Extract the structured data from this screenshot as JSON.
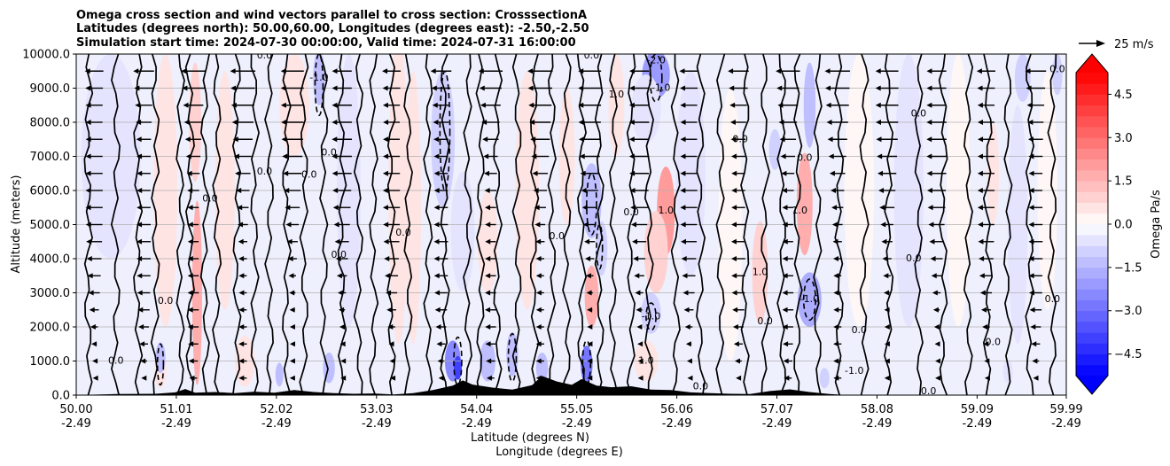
{
  "chart_data": {
    "type": "contour",
    "title_lines": [
      "Omega cross section and wind vectors parallel to cross section: CrosssectionA",
      "Latitudes (degrees north): 50.00,60.00, Longitudes (degrees east): -2.50,-2.50",
      "Simulation start time: 2024-07-30 00:00:00, Valid time: 2024-07-31 16:00:00"
    ],
    "xlabel_lines": [
      "Latitude (degrees N)",
      "Longitude (degrees E)"
    ],
    "ylabel": "Altitude (meters)",
    "xlim": [
      50.0,
      59.99
    ],
    "ylim": [
      0,
      10000
    ],
    "x_ticks": [
      {
        "value": 50.0,
        "lat": "50.00",
        "lon": "-2.49"
      },
      {
        "value": 51.01,
        "lat": "51.01",
        "lon": "-2.49"
      },
      {
        "value": 52.02,
        "lat": "52.02",
        "lon": "-2.49"
      },
      {
        "value": 53.03,
        "lat": "53.03",
        "lon": "-2.49"
      },
      {
        "value": 54.04,
        "lat": "54.04",
        "lon": "-2.49"
      },
      {
        "value": 55.05,
        "lat": "55.05",
        "lon": "-2.49"
      },
      {
        "value": 56.06,
        "lat": "56.06",
        "lon": "-2.49"
      },
      {
        "value": 57.07,
        "lat": "57.07",
        "lon": "-2.49"
      },
      {
        "value": 58.08,
        "lat": "58.08",
        "lon": "-2.49"
      },
      {
        "value": 59.09,
        "lat": "59.09",
        "lon": "-2.49"
      },
      {
        "value": 59.99,
        "lat": "59.99",
        "lon": "-2.49"
      }
    ],
    "y_ticks": [
      0,
      1000,
      2000,
      3000,
      4000,
      5000,
      6000,
      7000,
      8000,
      9000,
      10000
    ],
    "y_tick_labels": [
      "0.0",
      "1000.0",
      "2000.0",
      "3000.0",
      "4000.0",
      "5000.0",
      "6000.0",
      "7000.0",
      "8000.0",
      "9000.0",
      "10000.0"
    ],
    "grid": "horizontal",
    "colorbar": {
      "label": "Omega Pa/s",
      "range": [
        -5.25,
        5.25
      ],
      "step": 0.375,
      "extend": "both",
      "ticks": [
        -4.5,
        -3.0,
        -1.5,
        0.0,
        1.5,
        3.0,
        4.5
      ],
      "tick_labels": [
        "−4.5",
        "−3.0",
        "−1.5",
        "0.0",
        "1.5",
        "3.0",
        "4.5"
      ],
      "cmap": "bwr"
    },
    "wind_key": {
      "label": "25 m/s",
      "speed": 25
    },
    "contour_label_values": [
      "0.0",
      "1.0",
      "-1.0",
      "-2.0"
    ],
    "contour_labels": [
      {
        "text": "0.0",
        "x": 51.9,
        "y": 9950
      },
      {
        "text": "0.0",
        "x": 55.2,
        "y": 9950
      },
      {
        "text": "0.0",
        "x": 53.3,
        "y": 4750
      },
      {
        "text": "0.0",
        "x": 57.9,
        "y": 1900
      },
      {
        "text": "0.0",
        "x": 59.25,
        "y": 1550
      },
      {
        "text": "0.0",
        "x": 56.95,
        "y": 2150
      },
      {
        "text": "0.0",
        "x": 50.9,
        "y": 2750
      },
      {
        "text": "0.0",
        "x": 51.9,
        "y": 6550
      },
      {
        "text": "0.0",
        "x": 51.35,
        "y": 5750
      },
      {
        "text": "0.0",
        "x": 52.35,
        "y": 6450
      },
      {
        "text": "0.0",
        "x": 52.55,
        "y": 7100
      },
      {
        "text": "0.0",
        "x": 54.85,
        "y": 4650
      },
      {
        "text": "0.0",
        "x": 55.6,
        "y": 5350
      },
      {
        "text": "0.0",
        "x": 56.7,
        "y": 7500
      },
      {
        "text": "0.0",
        "x": 57.35,
        "y": 6950
      },
      {
        "text": "0.0",
        "x": 58.45,
        "y": 4000
      },
      {
        "text": "0.0",
        "x": 58.5,
        "y": 8250
      },
      {
        "text": "0.0",
        "x": 59.85,
        "y": 2800
      },
      {
        "text": "0.0",
        "x": 59.9,
        "y": 9550
      },
      {
        "text": "0.0",
        "x": 50.4,
        "y": 1000
      },
      {
        "text": "0.0",
        "x": 52.65,
        "y": 4100
      },
      {
        "text": "0.0",
        "x": 56.3,
        "y": 250
      },
      {
        "text": "0.0",
        "x": 58.6,
        "y": 100
      },
      {
        "text": "1.0",
        "x": 55.95,
        "y": 5400
      },
      {
        "text": "1.0",
        "x": 57.3,
        "y": 5400
      },
      {
        "text": "1.0",
        "x": 56.9,
        "y": 3600
      },
      {
        "text": "1.0",
        "x": 55.75,
        "y": 1000
      },
      {
        "text": "1.0",
        "x": 55.45,
        "y": 8800
      },
      {
        "text": "-1.0",
        "x": 52.45,
        "y": 9300
      },
      {
        "text": "-1.0",
        "x": 55.9,
        "y": 9000
      },
      {
        "text": "-1.0",
        "x": 57.4,
        "y": 2800
      },
      {
        "text": "-1.0",
        "x": 55.8,
        "y": 2300
      },
      {
        "text": "-1.0",
        "x": 57.85,
        "y": 700
      },
      {
        "text": "-2.0",
        "x": 55.85,
        "y": 9800
      }
    ],
    "cells": [
      {
        "x": 51.22,
        "y": 3000,
        "v": 1.8,
        "w": 0.05,
        "h": 5400
      },
      {
        "x": 51.2,
        "y": 8000,
        "v": 0.8,
        "w": 0.06,
        "h": 3500
      },
      {
        "x": 51.5,
        "y": 6000,
        "v": 0.6,
        "w": 0.1,
        "h": 7000
      },
      {
        "x": 50.9,
        "y": 6000,
        "v": 0.4,
        "w": 0.12,
        "h": 8000
      },
      {
        "x": 50.35,
        "y": 7000,
        "v": -0.4,
        "w": 0.3,
        "h": 6000
      },
      {
        "x": 50.85,
        "y": 800,
        "v": 0.7,
        "w": 0.06,
        "h": 1200
      },
      {
        "x": 50.85,
        "y": 1100,
        "v": -1.4,
        "w": 0.05,
        "h": 900
      },
      {
        "x": 51.7,
        "y": 1000,
        "v": 0.6,
        "w": 0.1,
        "h": 1500
      },
      {
        "x": 52.2,
        "y": 8500,
        "v": 0.4,
        "w": 0.15,
        "h": 3000
      },
      {
        "x": 52.45,
        "y": 9300,
        "v": -1.3,
        "w": 0.06,
        "h": 1600
      },
      {
        "x": 52.05,
        "y": 600,
        "v": -1.5,
        "w": 0.04,
        "h": 700
      },
      {
        "x": 52.55,
        "y": 800,
        "v": -1.2,
        "w": 0.06,
        "h": 900
      },
      {
        "x": 52.75,
        "y": 6000,
        "v": -0.4,
        "w": 0.12,
        "h": 8000
      },
      {
        "x": 53.25,
        "y": 6000,
        "v": 0.6,
        "w": 0.1,
        "h": 9000
      },
      {
        "x": 53.4,
        "y": 5500,
        "v": 0.45,
        "w": 0.08,
        "h": 8000
      },
      {
        "x": 53.7,
        "y": 7500,
        "v": -1.0,
        "w": 0.12,
        "h": 4000
      },
      {
        "x": 53.9,
        "y": 4800,
        "v": -0.5,
        "w": 0.12,
        "h": 3500
      },
      {
        "x": 54.15,
        "y": 4500,
        "v": 0.7,
        "w": 0.1,
        "h": 3000
      },
      {
        "x": 53.8,
        "y": 1000,
        "v": -2.4,
        "w": 0.08,
        "h": 1200
      },
      {
        "x": 53.85,
        "y": 800,
        "v": -4.0,
        "w": 0.04,
        "h": 700
      },
      {
        "x": 54.15,
        "y": 1000,
        "v": -1.4,
        "w": 0.08,
        "h": 1200
      },
      {
        "x": 54.55,
        "y": 6000,
        "v": 0.4,
        "w": 0.12,
        "h": 7000
      },
      {
        "x": 54.4,
        "y": 1200,
        "v": -1.2,
        "w": 0.06,
        "h": 1300
      },
      {
        "x": 54.7,
        "y": 800,
        "v": -1.3,
        "w": 0.06,
        "h": 900
      },
      {
        "x": 55.2,
        "y": 5700,
        "v": -1.4,
        "w": 0.1,
        "h": 2200
      },
      {
        "x": 55.3,
        "y": 4300,
        "v": -1.1,
        "w": 0.06,
        "h": 1600
      },
      {
        "x": 55.2,
        "y": 2900,
        "v": 1.8,
        "w": 0.07,
        "h": 1800
      },
      {
        "x": 55.15,
        "y": 900,
        "v": -2.8,
        "w": 0.06,
        "h": 1100
      },
      {
        "x": 54.95,
        "y": 7000,
        "v": 0.5,
        "w": 0.08,
        "h": 4000
      },
      {
        "x": 55.45,
        "y": 8500,
        "v": 0.6,
        "w": 0.08,
        "h": 3000
      },
      {
        "x": 55.85,
        "y": 9400,
        "v": -1.9,
        "w": 0.14,
        "h": 1400
      },
      {
        "x": 55.75,
        "y": 8400,
        "v": -0.5,
        "w": 0.15,
        "h": 2000
      },
      {
        "x": 55.95,
        "y": 5400,
        "v": 2.0,
        "w": 0.09,
        "h": 2600
      },
      {
        "x": 55.85,
        "y": 4200,
        "v": 1.0,
        "w": 0.12,
        "h": 2400
      },
      {
        "x": 55.8,
        "y": 2400,
        "v": -0.9,
        "w": 0.1,
        "h": 1200
      },
      {
        "x": 55.75,
        "y": 1000,
        "v": 0.5,
        "w": 0.12,
        "h": 1200
      },
      {
        "x": 56.2,
        "y": 6500,
        "v": -0.5,
        "w": 0.15,
        "h": 6000
      },
      {
        "x": 56.6,
        "y": 5000,
        "v": 0.35,
        "w": 0.12,
        "h": 8000
      },
      {
        "x": 56.9,
        "y": 3600,
        "v": 1.0,
        "w": 0.08,
        "h": 3000
      },
      {
        "x": 57.05,
        "y": 7200,
        "v": -1.0,
        "w": 0.06,
        "h": 1200
      },
      {
        "x": 57.35,
        "y": 5600,
        "v": 1.6,
        "w": 0.08,
        "h": 3000
      },
      {
        "x": 57.4,
        "y": 8500,
        "v": -1.2,
        "w": 0.06,
        "h": 2500
      },
      {
        "x": 57.4,
        "y": 2800,
        "v": -1.6,
        "w": 0.12,
        "h": 1600
      },
      {
        "x": 57.55,
        "y": 500,
        "v": -1.1,
        "w": 0.05,
        "h": 600
      },
      {
        "x": 57.9,
        "y": 6000,
        "v": 0.3,
        "w": 0.15,
        "h": 8000
      },
      {
        "x": 58.4,
        "y": 6000,
        "v": -0.4,
        "w": 0.15,
        "h": 8000
      },
      {
        "x": 58.9,
        "y": 6000,
        "v": 0.35,
        "w": 0.12,
        "h": 8000
      },
      {
        "x": 59.25,
        "y": 6500,
        "v": 0.7,
        "w": 0.06,
        "h": 3000
      },
      {
        "x": 59.55,
        "y": 9300,
        "v": -0.8,
        "w": 0.08,
        "h": 1400
      },
      {
        "x": 59.5,
        "y": 5000,
        "v": -0.4,
        "w": 0.1,
        "h": 7000
      },
      {
        "x": 59.8,
        "y": 6000,
        "v": 0.3,
        "w": 0.1,
        "h": 7000
      },
      {
        "x": 59.9,
        "y": 9400,
        "v": -1.0,
        "w": 0.05,
        "h": 1200
      },
      {
        "x": 59.4,
        "y": 700,
        "v": -0.6,
        "w": 0.05,
        "h": 700
      }
    ],
    "zero_contours_x": [
      50.12,
      50.4,
      50.62,
      50.8,
      51.05,
      51.15,
      51.3,
      51.42,
      51.62,
      51.8,
      51.95,
      52.12,
      52.3,
      52.5,
      52.68,
      52.85,
      53.0,
      53.18,
      53.35,
      53.55,
      53.72,
      53.95,
      54.08,
      54.25,
      54.45,
      54.62,
      54.8,
      54.95,
      55.1,
      55.28,
      55.42,
      55.6,
      55.78,
      56.05,
      56.3,
      56.5,
      56.75,
      56.95,
      57.12,
      57.28,
      57.48,
      57.7,
      57.95,
      58.2,
      58.5,
      58.75,
      59.0,
      59.2,
      59.4,
      59.62,
      59.85
    ],
    "dashed_contours": [
      {
        "x": 52.45,
        "y0": 8200,
        "y1": 10000,
        "w": 0.04
      },
      {
        "x": 53.72,
        "y0": 6000,
        "y1": 9500,
        "w": 0.05
      },
      {
        "x": 55.2,
        "y0": 4700,
        "y1": 6500,
        "w": 0.05
      },
      {
        "x": 55.28,
        "y0": 3700,
        "y1": 5000,
        "w": 0.03
      },
      {
        "x": 55.85,
        "y0": 8600,
        "y1": 10000,
        "w": 0.06
      },
      {
        "x": 57.4,
        "y0": 2200,
        "y1": 3400,
        "w": 0.06
      },
      {
        "x": 55.8,
        "y0": 1900,
        "y1": 2700,
        "w": 0.05
      },
      {
        "x": 53.85,
        "y0": 300,
        "y1": 1700,
        "w": 0.04
      },
      {
        "x": 55.15,
        "y0": 300,
        "y1": 1600,
        "w": 0.04
      },
      {
        "x": 54.4,
        "y0": 400,
        "y1": 1800,
        "w": 0.04
      },
      {
        "x": 50.85,
        "y0": 300,
        "y1": 1500,
        "w": 0.03
      }
    ],
    "terrain": [
      [
        50.0,
        0
      ],
      [
        50.4,
        30
      ],
      [
        50.8,
        40
      ],
      [
        51.0,
        80
      ],
      [
        51.1,
        180
      ],
      [
        51.2,
        70
      ],
      [
        51.4,
        90
      ],
      [
        51.6,
        60
      ],
      [
        51.8,
        100
      ],
      [
        52.0,
        70
      ],
      [
        52.2,
        150
      ],
      [
        52.4,
        90
      ],
      [
        52.6,
        60
      ],
      [
        52.8,
        40
      ],
      [
        53.0,
        50
      ],
      [
        53.2,
        20
      ],
      [
        53.4,
        60
      ],
      [
        53.6,
        150
      ],
      [
        53.8,
        280
      ],
      [
        53.9,
        430
      ],
      [
        54.0,
        310
      ],
      [
        54.2,
        220
      ],
      [
        54.4,
        160
      ],
      [
        54.6,
        290
      ],
      [
        54.7,
        560
      ],
      [
        54.85,
        400
      ],
      [
        55.0,
        300
      ],
      [
        55.1,
        470
      ],
      [
        55.25,
        280
      ],
      [
        55.4,
        230
      ],
      [
        55.6,
        260
      ],
      [
        55.8,
        160
      ],
      [
        56.0,
        150
      ],
      [
        56.2,
        80
      ],
      [
        56.4,
        60
      ],
      [
        56.6,
        40
      ],
      [
        56.8,
        30
      ],
      [
        57.0,
        120
      ],
      [
        57.2,
        170
      ],
      [
        57.4,
        90
      ],
      [
        57.6,
        30
      ],
      [
        57.8,
        0
      ],
      [
        59.99,
        0
      ]
    ]
  }
}
